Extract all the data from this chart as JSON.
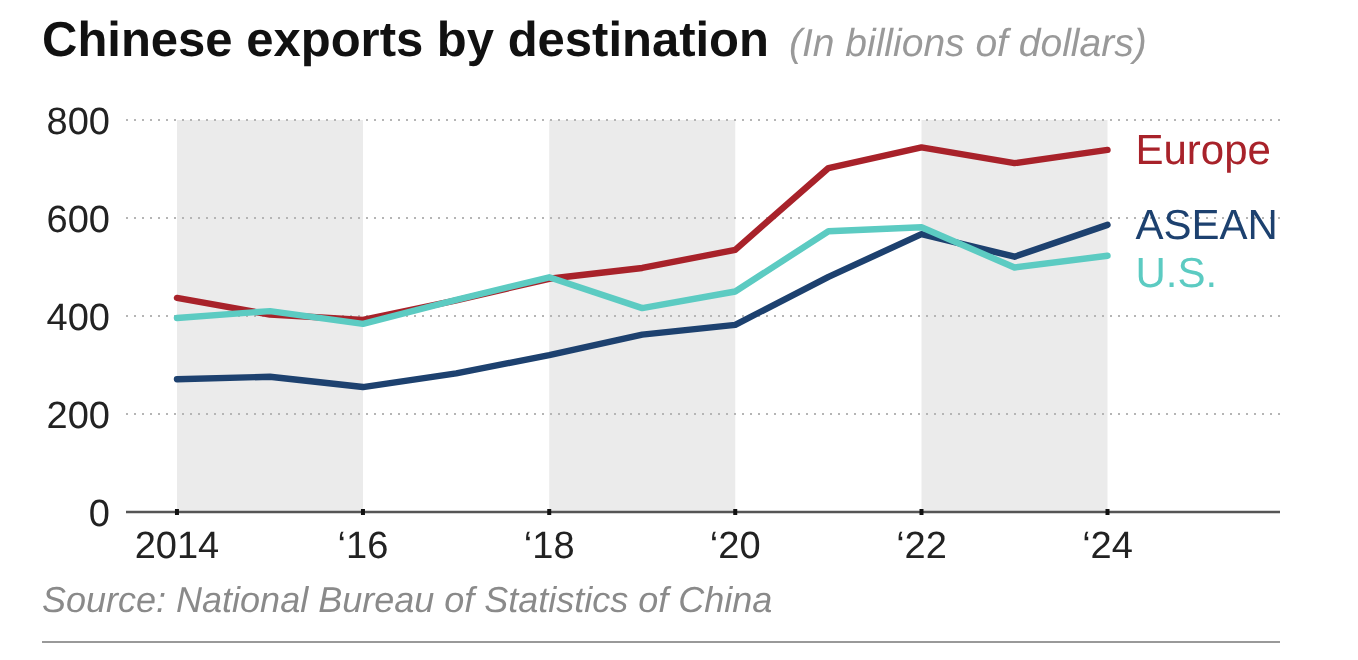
{
  "chart_data": {
    "type": "line",
    "title": "Chinese exports by destination",
    "subtitle": "(In billions of dollars)",
    "x": [
      "2014",
      "2015",
      "2016",
      "2017",
      "2018",
      "2019",
      "2020",
      "2021",
      "2022",
      "2023",
      "2024"
    ],
    "series": [
      {
        "name": "Europe",
        "color": "#a8222a",
        "values": [
          437,
          403,
          392,
          432,
          476,
          498,
          535,
          702,
          744,
          712,
          739
        ]
      },
      {
        "name": "ASEAN",
        "color": "#1d416f",
        "values": [
          271,
          276,
          255,
          283,
          320,
          362,
          382,
          480,
          567,
          521,
          586
        ]
      },
      {
        "name": "U.S.",
        "color": "#5ccbc2",
        "values": [
          396,
          410,
          384,
          433,
          479,
          416,
          450,
          573,
          581,
          499,
          523
        ]
      }
    ],
    "xlim": [
      "2013-06-15",
      "2025-11-08"
    ],
    "xticks": [
      "2014",
      {
        "value": "2016",
        "label": "‘16"
      },
      {
        "value": "2018",
        "label": "‘18"
      },
      {
        "value": "2020",
        "label": "‘20"
      },
      {
        "value": "2022",
        "label": "‘22"
      },
      {
        "value": "2024",
        "label": "‘24"
      }
    ],
    "ylim": [
      0,
      800
    ],
    "yticks": [
      0,
      200,
      400,
      600,
      800
    ],
    "grid": "y",
    "bands": [
      {
        "axis": "x",
        "from": "2014",
        "to": "2016",
        "color": "#ebebeb"
      },
      {
        "axis": "x",
        "from": "2018",
        "to": "2020",
        "color": "#ebebeb"
      },
      {
        "axis": "x",
        "from": "2022",
        "to": "2024",
        "color": "#ebebeb"
      }
    ],
    "line_style": "solid",
    "annotations": [
      "Source: National Bureau of Statistics of China"
    ]
  }
}
